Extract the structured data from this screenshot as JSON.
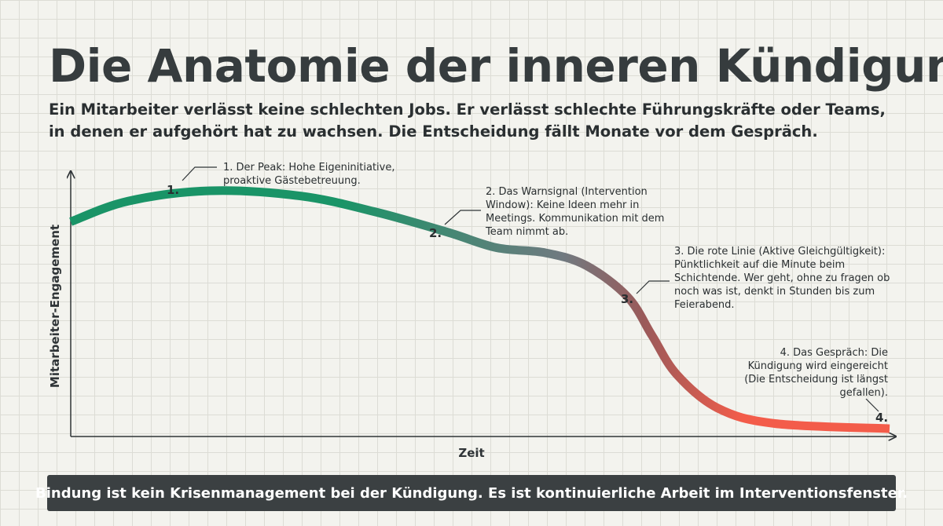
{
  "title": "Die Anatomie der inneren Kündigung",
  "subtitle": "Ein Mitarbeiter verlässt keine schlechten Jobs. Er verlässt schlechte Führungskräfte oder Teams, in denen er aufgehört hat zu wachsen. Die Entscheidung fällt Monate vor dem Gespräch.",
  "footer": "Bindung ist kein Krisenmanagement bei der Kündigung. Es ist kontinuierliche Arbeit im Interventionsfenster.",
  "colors": {
    "curve_start": "#1a9467",
    "curve_mid": "#707a80",
    "curve_accent": "#9a5a5a",
    "curve_end": "#f35c4a",
    "footer_bg": "#3b4042"
  },
  "chart_data": {
    "type": "line",
    "xlabel": "Zeit",
    "ylabel": "Mitarbeiter-Engagement",
    "x_ticks": false,
    "y_ticks": false,
    "grid": true,
    "series": [
      {
        "values": [
          {
            "t": 0.0,
            "engagement": 0.83
          },
          {
            "t": 0.07,
            "engagement": 0.91
          },
          {
            "t": 0.17,
            "engagement": 0.95
          },
          {
            "t": 0.28,
            "engagement": 0.93
          },
          {
            "t": 0.37,
            "engagement": 0.87
          },
          {
            "t": 0.46,
            "engagement": 0.79
          },
          {
            "t": 0.52,
            "engagement": 0.73
          },
          {
            "t": 0.58,
            "engagement": 0.71
          },
          {
            "t": 0.63,
            "engagement": 0.66
          },
          {
            "t": 0.68,
            "engagement": 0.54
          },
          {
            "t": 0.71,
            "engagement": 0.39
          },
          {
            "t": 0.74,
            "engagement": 0.24
          },
          {
            "t": 0.79,
            "engagement": 0.11
          },
          {
            "t": 0.86,
            "engagement": 0.05
          },
          {
            "t": 1.0,
            "engagement": 0.03
          }
        ]
      }
    ],
    "annotations": [
      {
        "marker": "1.",
        "text": "1. Der Peak: Hohe Eigeninitiative, proaktive Gästebetreuung.",
        "t": 0.12,
        "engagement": 0.95
      },
      {
        "marker": "2.",
        "text": "2. Das Warnsignal (Intervention Window): Keine Ideen mehr in Meetings. Kommunikation mit dem Team nimmt ab.",
        "t": 0.47,
        "engagement": 0.78
      },
      {
        "marker": "3.",
        "text": "3. Die rote Linie (Aktive Gleichgültigkeit): Pünktlichkeit auf die Minute beim Schichtende. Wer geht, ohne zu fragen ob noch was ist, denkt in Stunden bis zum Feierabend.",
        "t": 0.69,
        "engagement": 0.5
      },
      {
        "marker": "4.",
        "text": "4. Das Gespräch: Die Kündigung wird eingereicht (Die Entscheidung ist längst gefallen).",
        "t": 0.99,
        "engagement": 0.03
      }
    ]
  }
}
